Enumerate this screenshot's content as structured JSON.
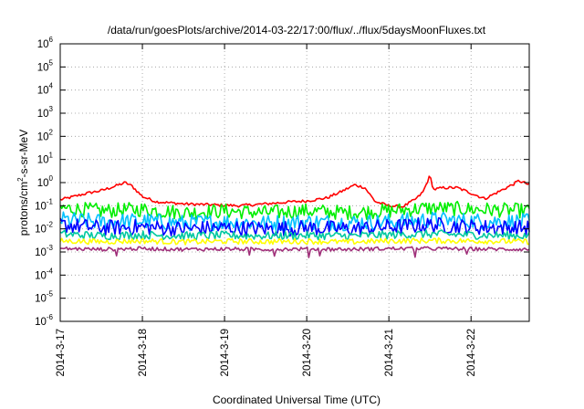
{
  "chart_data": {
    "type": "line",
    "title": "/data/run/goesPlots/archive/2014-03-22/17:00/flux/../flux/5daysMoonFluxes.txt",
    "xlabel": "Coordinated Universal Time (UTC)",
    "ylabel": {
      "base": "protons/cm",
      "sup": "2",
      "rest": "-s-sr-MeV"
    },
    "y_scale": "log",
    "ylim": [
      1e-06,
      1000000.0
    ],
    "y_ticks": [
      {
        "base": "10",
        "exp": "-6"
      },
      {
        "base": "10",
        "exp": "-5"
      },
      {
        "base": "10",
        "exp": "-4"
      },
      {
        "base": "10",
        "exp": "-3"
      },
      {
        "base": "10",
        "exp": "-2"
      },
      {
        "base": "10",
        "exp": "-1"
      },
      {
        "base": "10",
        "exp": "0"
      },
      {
        "base": "10",
        "exp": "1"
      },
      {
        "base": "10",
        "exp": "2"
      },
      {
        "base": "10",
        "exp": "3"
      },
      {
        "base": "10",
        "exp": "4"
      },
      {
        "base": "10",
        "exp": "5"
      },
      {
        "base": "10",
        "exp": "6"
      }
    ],
    "x_range": [
      "2014-03-17 00:00",
      "2014-03-22 17:00"
    ],
    "x_ticks": [
      "2014-3-17",
      "2014-3-18",
      "2014-3-19",
      "2014-3-20",
      "2014-3-21",
      "2014-3-22"
    ],
    "grid": "dotted",
    "legend": "none",
    "series": [
      {
        "color": "#ff0000",
        "points": [
          [
            "2014-03-17 00:00",
            0.18
          ],
          [
            "2014-03-17 04:00",
            0.25
          ],
          [
            "2014-03-17 08:00",
            0.35
          ],
          [
            "2014-03-17 12:00",
            0.45
          ],
          [
            "2014-03-17 16:00",
            0.7
          ],
          [
            "2014-03-17 19:00",
            1.0
          ],
          [
            "2014-03-17 21:00",
            0.7
          ],
          [
            "2014-03-18 00:00",
            0.25
          ],
          [
            "2014-03-18 04:00",
            0.15
          ],
          [
            "2014-03-18 12:00",
            0.12
          ],
          [
            "2014-03-18 20:00",
            0.11
          ],
          [
            "2014-03-19 04:00",
            0.1
          ],
          [
            "2014-03-19 12:00",
            0.12
          ],
          [
            "2014-03-19 20:00",
            0.15
          ],
          [
            "2014-03-20 00:00",
            0.16
          ],
          [
            "2014-03-20 06:00",
            0.22
          ],
          [
            "2014-03-20 10:00",
            0.4
          ],
          [
            "2014-03-20 14:00",
            0.8
          ],
          [
            "2014-03-20 17:00",
            0.6
          ],
          [
            "2014-03-20 20:00",
            0.15
          ],
          [
            "2014-03-21 00:00",
            0.1
          ],
          [
            "2014-03-21 04:00",
            0.09
          ],
          [
            "2014-03-21 08:00",
            0.2
          ],
          [
            "2014-03-21 10:00",
            0.4
          ],
          [
            "2014-03-21 12:00",
            2.0
          ],
          [
            "2014-03-21 13:00",
            0.5
          ],
          [
            "2014-03-21 16:00",
            0.6
          ],
          [
            "2014-03-21 20:00",
            0.6
          ],
          [
            "2014-03-22 00:00",
            0.35
          ],
          [
            "2014-03-22 04:00",
            0.2
          ],
          [
            "2014-03-22 08:00",
            0.4
          ],
          [
            "2014-03-22 12:00",
            0.8
          ],
          [
            "2014-03-22 14:00",
            1.2
          ],
          [
            "2014-03-22 17:00",
            0.8
          ]
        ]
      },
      {
        "color": "#00ee00",
        "points": [
          [
            "2014-03-17 00:00",
            0.08
          ],
          [
            "2014-03-17 12:00",
            0.06
          ],
          [
            "2014-03-18 00:00",
            0.07
          ],
          [
            "2014-03-18 12:00",
            0.05
          ],
          [
            "2014-03-19 00:00",
            0.06
          ],
          [
            "2014-03-19 12:00",
            0.05
          ],
          [
            "2014-03-20 00:00",
            0.06
          ],
          [
            "2014-03-20 12:00",
            0.05
          ],
          [
            "2014-03-21 00:00",
            0.06
          ],
          [
            "2014-03-21 12:00",
            0.08
          ],
          [
            "2014-03-22 00:00",
            0.07
          ],
          [
            "2014-03-22 17:00",
            0.06
          ]
        ]
      },
      {
        "color": "#00c0ff",
        "points": [
          [
            "2014-03-17 00:00",
            0.025
          ],
          [
            "2014-03-17 12:00",
            0.02
          ],
          [
            "2014-03-18 00:00",
            0.022
          ],
          [
            "2014-03-18 12:00",
            0.018
          ],
          [
            "2014-03-19 00:00",
            0.02
          ],
          [
            "2014-03-19 12:00",
            0.018
          ],
          [
            "2014-03-20 00:00",
            0.02
          ],
          [
            "2014-03-20 12:00",
            0.019
          ],
          [
            "2014-03-21 00:00",
            0.02
          ],
          [
            "2014-03-21 12:00",
            0.025
          ],
          [
            "2014-03-22 00:00",
            0.022
          ],
          [
            "2014-03-22 17:00",
            0.02
          ]
        ]
      },
      {
        "color": "#0000ff",
        "points": [
          [
            "2014-03-17 00:00",
            0.015
          ],
          [
            "2014-03-17 12:00",
            0.011
          ],
          [
            "2014-03-18 00:00",
            0.012
          ],
          [
            "2014-03-18 12:00",
            0.01
          ],
          [
            "2014-03-19 00:00",
            0.011
          ],
          [
            "2014-03-19 12:00",
            0.01
          ],
          [
            "2014-03-20 00:00",
            0.011
          ],
          [
            "2014-03-20 12:00",
            0.01
          ],
          [
            "2014-03-21 00:00",
            0.012
          ],
          [
            "2014-03-21 12:00",
            0.015
          ],
          [
            "2014-03-22 00:00",
            0.012
          ],
          [
            "2014-03-22 17:00",
            0.011
          ]
        ]
      },
      {
        "color": "#00c8a0",
        "points": [
          [
            "2014-03-17 00:00",
            0.006
          ],
          [
            "2014-03-17 12:00",
            0.005
          ],
          [
            "2014-03-18 00:00",
            0.0055
          ],
          [
            "2014-03-18 12:00",
            0.005
          ],
          [
            "2014-03-19 00:00",
            0.0052
          ],
          [
            "2014-03-19 12:00",
            0.005
          ],
          [
            "2014-03-20 00:00",
            0.0052
          ],
          [
            "2014-03-20 12:00",
            0.005
          ],
          [
            "2014-03-21 00:00",
            0.0055
          ],
          [
            "2014-03-21 12:00",
            0.006
          ],
          [
            "2014-03-22 00:00",
            0.0055
          ],
          [
            "2014-03-22 17:00",
            0.005
          ]
        ]
      },
      {
        "color": "#ffff00",
        "points": [
          [
            "2014-03-17 00:00",
            0.003
          ],
          [
            "2014-03-17 12:00",
            0.0028
          ],
          [
            "2014-03-18 00:00",
            0.003
          ],
          [
            "2014-03-18 12:00",
            0.0027
          ],
          [
            "2014-03-19 00:00",
            0.0029
          ],
          [
            "2014-03-19 12:00",
            0.0028
          ],
          [
            "2014-03-20 00:00",
            0.0029
          ],
          [
            "2014-03-20 12:00",
            0.0027
          ],
          [
            "2014-03-21 00:00",
            0.003
          ],
          [
            "2014-03-21 12:00",
            0.0031
          ],
          [
            "2014-03-22 00:00",
            0.003
          ],
          [
            "2014-03-22 17:00",
            0.0028
          ]
        ]
      },
      {
        "color": "#a0307a",
        "points": [
          [
            "2014-03-17 00:00",
            0.0014
          ],
          [
            "2014-03-17 12:00",
            0.0013
          ],
          [
            "2014-03-18 00:00",
            0.0014
          ],
          [
            "2014-03-18 12:00",
            0.0013
          ],
          [
            "2014-03-19 00:00",
            0.00135
          ],
          [
            "2014-03-19 12:00",
            0.0013
          ],
          [
            "2014-03-20 00:00",
            0.00135
          ],
          [
            "2014-03-20 12:00",
            0.0013
          ],
          [
            "2014-03-21 00:00",
            0.0014
          ],
          [
            "2014-03-21 12:00",
            0.0014
          ],
          [
            "2014-03-22 00:00",
            0.00135
          ],
          [
            "2014-03-22 17:00",
            0.0013
          ]
        ]
      }
    ]
  }
}
